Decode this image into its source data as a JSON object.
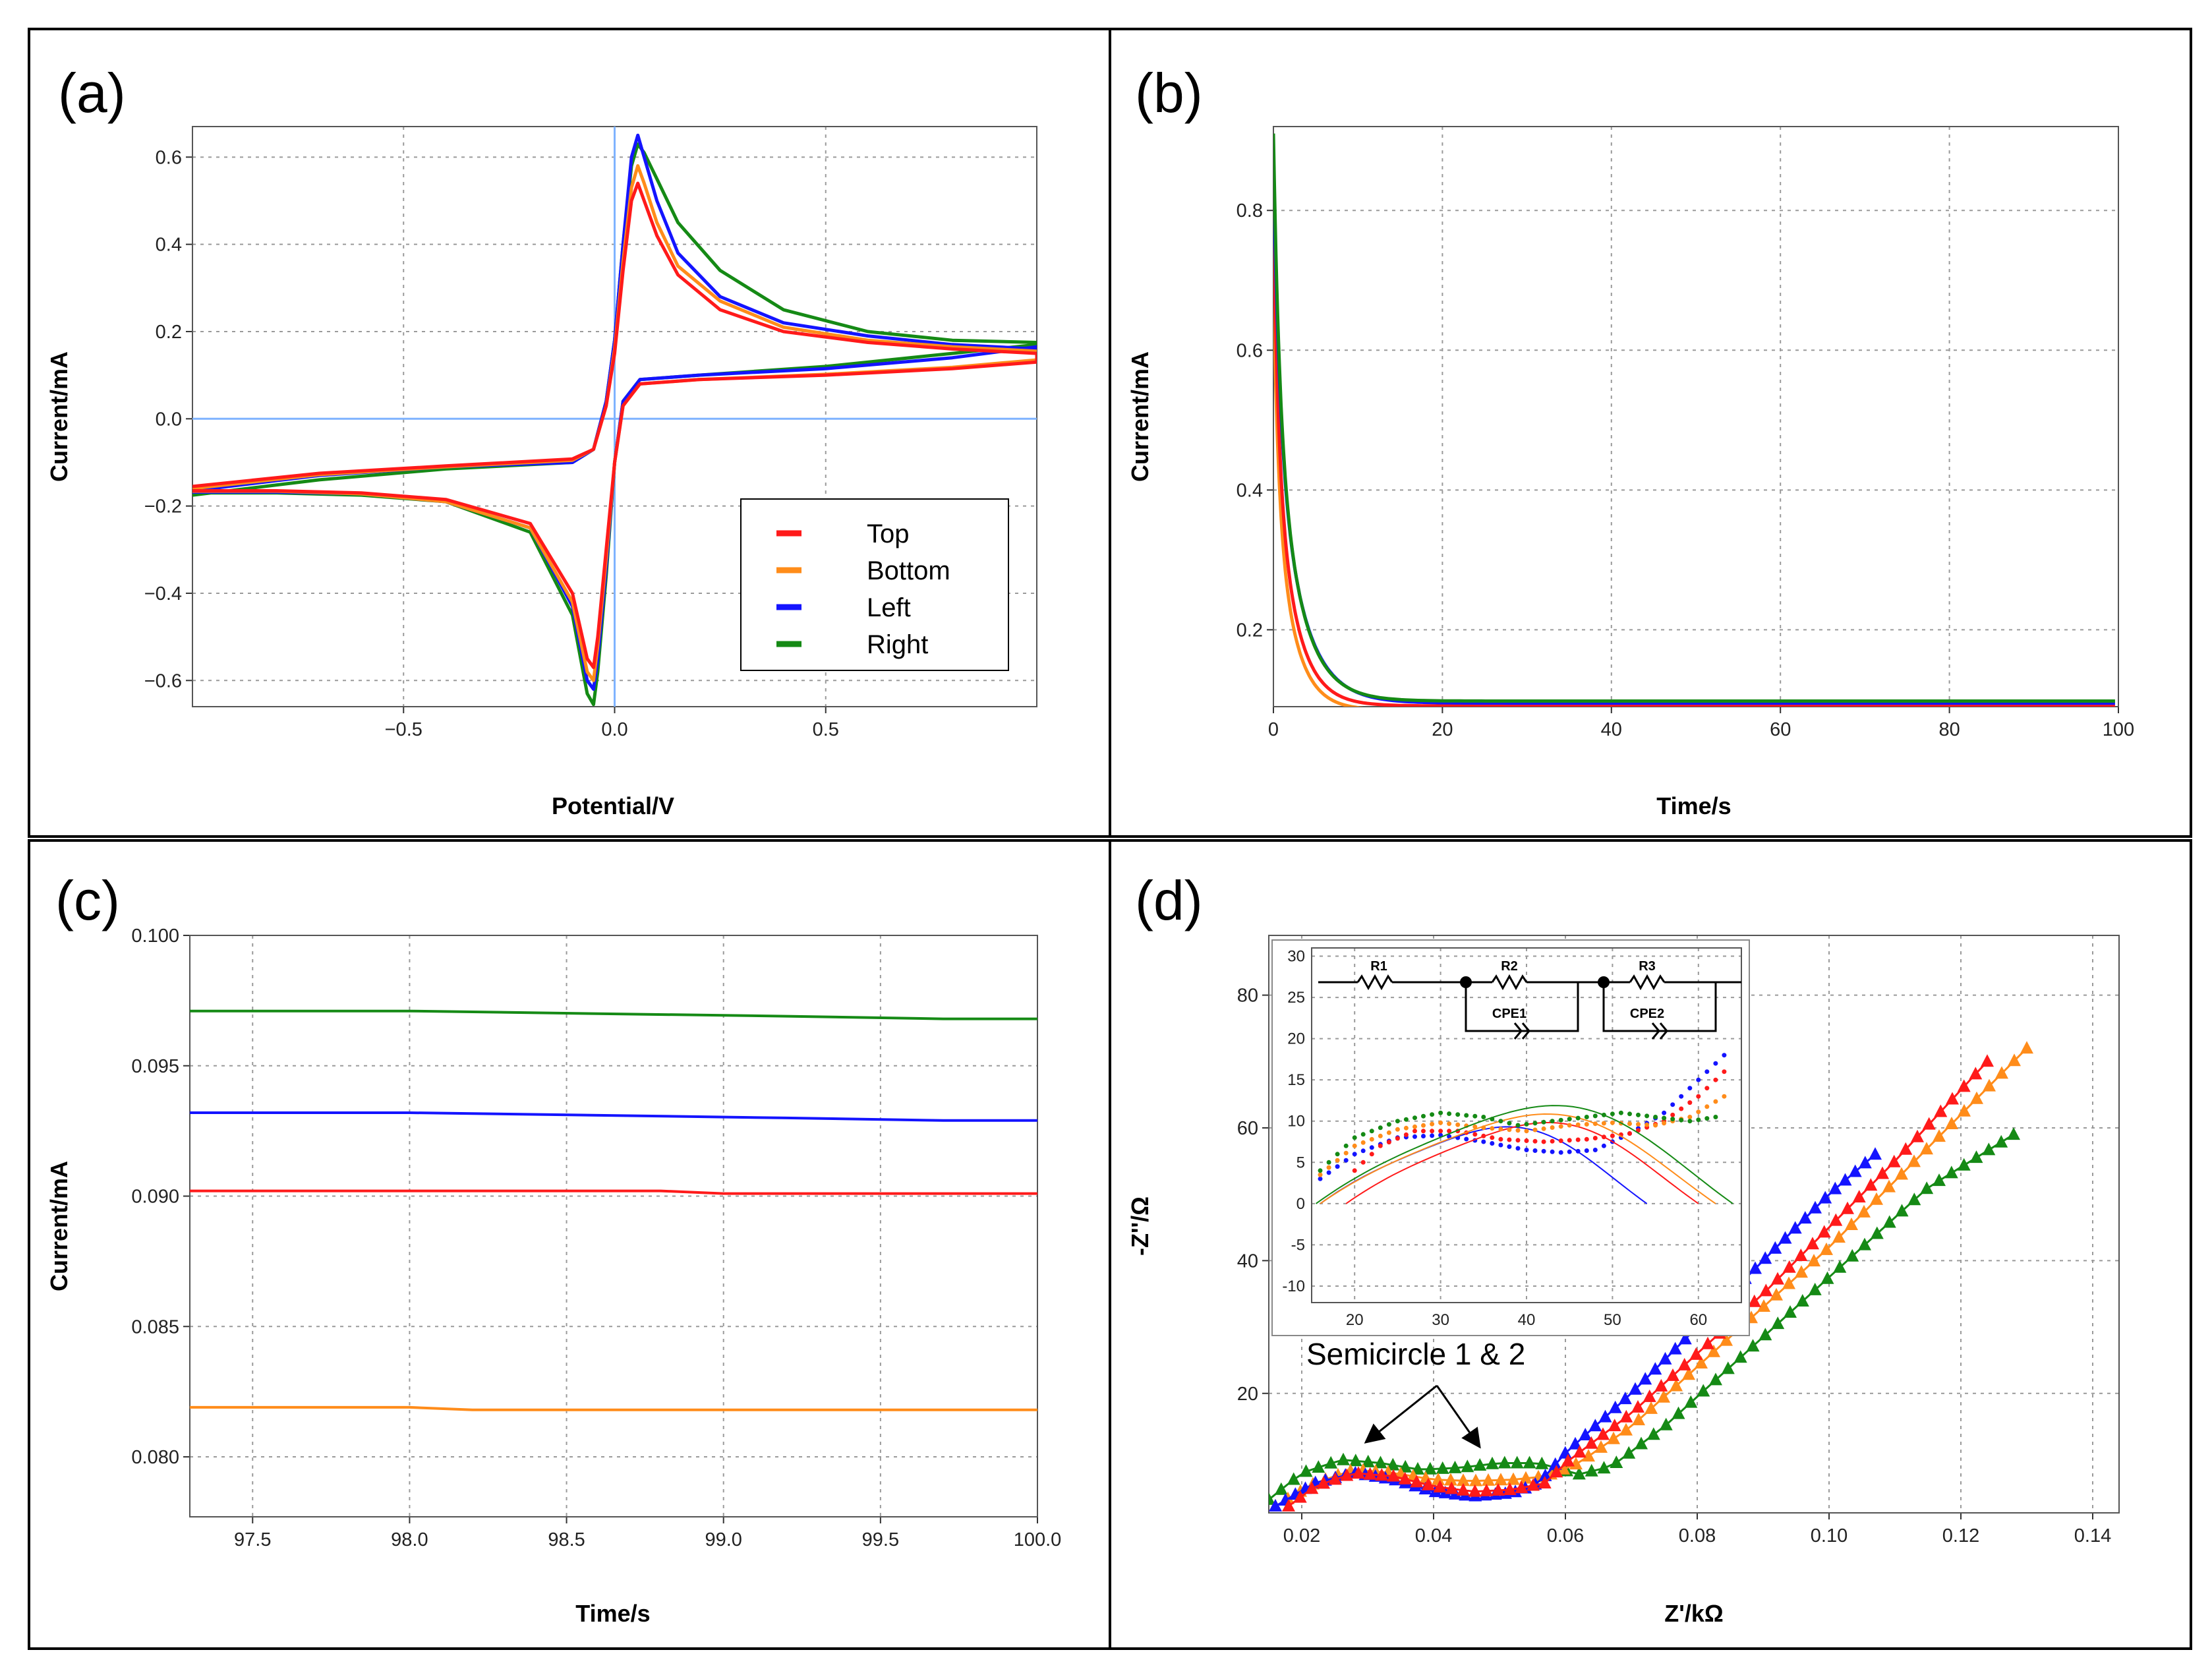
{
  "colors": {
    "Top": "#ff1a1a",
    "Bottom": "#ff8c1a",
    "Left": "#1414ff",
    "Right": "#158a15",
    "crosshair": "#7fb3ff"
  },
  "annotation": "Semicircle 1 & 2",
  "chart_data": [
    {
      "panel": "(a)",
      "type": "line",
      "title": "(a)",
      "xlabel": "Potential/V",
      "ylabel": "Current/mA",
      "xlim": [
        -1.0,
        1.0
      ],
      "ylim": [
        -0.66,
        0.67
      ],
      "xticks": [
        -0.5,
        0.0,
        0.5
      ],
      "xtick_labels": [
        "−0.5",
        "0.0",
        "0.5"
      ],
      "yticks": [
        -0.6,
        -0.4,
        -0.2,
        0.0,
        0.2,
        0.4,
        0.6
      ],
      "ytick_labels": [
        "−0.6",
        "−0.4",
        "−0.2",
        "0.0",
        "0.2",
        "0.4",
        "0.6"
      ],
      "legend": {
        "position": "lower-right",
        "entries": [
          "Top",
          "Bottom",
          "Left",
          "Right"
        ]
      },
      "series": [
        {
          "name": "Top",
          "color": "#ff1a1a",
          "upper": [
            [
              -1.0,
              -0.155
            ],
            [
              -0.7,
              -0.125
            ],
            [
              -0.4,
              -0.108
            ],
            [
              -0.1,
              -0.092
            ],
            [
              -0.05,
              -0.07
            ],
            [
              -0.02,
              0.03
            ],
            [
              0.0,
              0.15
            ],
            [
              0.02,
              0.34
            ],
            [
              0.04,
              0.5
            ],
            [
              0.055,
              0.54
            ],
            [
              0.07,
              0.5
            ],
            [
              0.1,
              0.42
            ],
            [
              0.15,
              0.33
            ],
            [
              0.25,
              0.25
            ],
            [
              0.4,
              0.2
            ],
            [
              0.6,
              0.175
            ],
            [
              0.8,
              0.16
            ],
            [
              1.0,
              0.15
            ]
          ],
          "lower": [
            [
              1.0,
              0.13
            ],
            [
              0.8,
              0.115
            ],
            [
              0.5,
              0.1
            ],
            [
              0.2,
              0.09
            ],
            [
              0.06,
              0.08
            ],
            [
              0.02,
              0.03
            ],
            [
              0.0,
              -0.1
            ],
            [
              -0.02,
              -0.3
            ],
            [
              -0.04,
              -0.5
            ],
            [
              -0.05,
              -0.57
            ],
            [
              -0.065,
              -0.55
            ],
            [
              -0.1,
              -0.4
            ],
            [
              -0.2,
              -0.24
            ],
            [
              -0.4,
              -0.185
            ],
            [
              -0.6,
              -0.17
            ],
            [
              -0.8,
              -0.165
            ],
            [
              -1.0,
              -0.165
            ]
          ]
        },
        {
          "name": "Bottom",
          "color": "#ff8c1a",
          "upper": [
            [
              -1.0,
              -0.16
            ],
            [
              -0.7,
              -0.128
            ],
            [
              -0.4,
              -0.11
            ],
            [
              -0.1,
              -0.095
            ],
            [
              -0.05,
              -0.07
            ],
            [
              -0.02,
              0.03
            ],
            [
              0.0,
              0.16
            ],
            [
              0.02,
              0.36
            ],
            [
              0.04,
              0.53
            ],
            [
              0.055,
              0.58
            ],
            [
              0.07,
              0.54
            ],
            [
              0.1,
              0.45
            ],
            [
              0.15,
              0.35
            ],
            [
              0.25,
              0.27
            ],
            [
              0.4,
              0.21
            ],
            [
              0.6,
              0.18
            ],
            [
              0.8,
              0.165
            ],
            [
              1.0,
              0.155
            ]
          ],
          "lower": [
            [
              1.0,
              0.135
            ],
            [
              0.8,
              0.118
            ],
            [
              0.5,
              0.102
            ],
            [
              0.2,
              0.09
            ],
            [
              0.06,
              0.08
            ],
            [
              0.02,
              0.03
            ],
            [
              0.0,
              -0.1
            ],
            [
              -0.02,
              -0.32
            ],
            [
              -0.04,
              -0.52
            ],
            [
              -0.05,
              -0.6
            ],
            [
              -0.065,
              -0.58
            ],
            [
              -0.1,
              -0.42
            ],
            [
              -0.2,
              -0.25
            ],
            [
              -0.4,
              -0.19
            ],
            [
              -0.6,
              -0.172
            ],
            [
              -0.8,
              -0.166
            ],
            [
              -1.0,
              -0.166
            ]
          ]
        },
        {
          "name": "Left",
          "color": "#1414ff",
          "upper": [
            [
              -1.0,
              -0.165
            ],
            [
              -0.7,
              -0.13
            ],
            [
              -0.4,
              -0.11
            ],
            [
              -0.1,
              -0.1
            ],
            [
              -0.05,
              -0.07
            ],
            [
              -0.02,
              0.04
            ],
            [
              0.0,
              0.18
            ],
            [
              0.02,
              0.4
            ],
            [
              0.04,
              0.6
            ],
            [
              0.055,
              0.65
            ],
            [
              0.07,
              0.6
            ],
            [
              0.1,
              0.5
            ],
            [
              0.15,
              0.38
            ],
            [
              0.25,
              0.28
            ],
            [
              0.4,
              0.22
            ],
            [
              0.6,
              0.19
            ],
            [
              0.8,
              0.17
            ],
            [
              1.0,
              0.16
            ]
          ],
          "lower": [
            [
              1.0,
              0.165
            ],
            [
              0.8,
              0.14
            ],
            [
              0.5,
              0.115
            ],
            [
              0.2,
              0.1
            ],
            [
              0.06,
              0.09
            ],
            [
              0.02,
              0.04
            ],
            [
              0.0,
              -0.1
            ],
            [
              -0.02,
              -0.34
            ],
            [
              -0.04,
              -0.55
            ],
            [
              -0.05,
              -0.62
            ],
            [
              -0.065,
              -0.6
            ],
            [
              -0.1,
              -0.43
            ],
            [
              -0.2,
              -0.25
            ],
            [
              -0.4,
              -0.19
            ],
            [
              -0.6,
              -0.172
            ],
            [
              -0.8,
              -0.168
            ],
            [
              -1.0,
              -0.168
            ]
          ]
        },
        {
          "name": "Right",
          "color": "#158a15",
          "upper": [
            [
              -1.0,
              -0.175
            ],
            [
              -0.7,
              -0.14
            ],
            [
              -0.4,
              -0.115
            ],
            [
              -0.1,
              -0.1
            ],
            [
              -0.05,
              -0.07
            ],
            [
              -0.02,
              0.04
            ],
            [
              0.0,
              0.18
            ],
            [
              0.02,
              0.4
            ],
            [
              0.04,
              0.58
            ],
            [
              0.055,
              0.63
            ],
            [
              0.07,
              0.61
            ],
            [
              0.1,
              0.55
            ],
            [
              0.15,
              0.45
            ],
            [
              0.25,
              0.34
            ],
            [
              0.4,
              0.25
            ],
            [
              0.6,
              0.2
            ],
            [
              0.8,
              0.18
            ],
            [
              1.0,
              0.175
            ]
          ],
          "lower": [
            [
              1.0,
              0.17
            ],
            [
              0.8,
              0.15
            ],
            [
              0.5,
              0.12
            ],
            [
              0.2,
              0.1
            ],
            [
              0.06,
              0.09
            ],
            [
              0.02,
              0.04
            ],
            [
              0.0,
              -0.1
            ],
            [
              -0.02,
              -0.36
            ],
            [
              -0.04,
              -0.58
            ],
            [
              -0.05,
              -0.655
            ],
            [
              -0.065,
              -0.63
            ],
            [
              -0.1,
              -0.45
            ],
            [
              -0.2,
              -0.26
            ],
            [
              -0.4,
              -0.19
            ],
            [
              -0.6,
              -0.175
            ],
            [
              -0.8,
              -0.17
            ],
            [
              -1.0,
              -0.17
            ]
          ]
        }
      ]
    },
    {
      "panel": "(b)",
      "type": "line",
      "title": "(b)",
      "xlabel": "Time/s",
      "ylabel": "Current/mA",
      "xlim": [
        0,
        100
      ],
      "ylim": [
        0.09,
        0.92
      ],
      "xticks": [
        0,
        20,
        40,
        60,
        80,
        100
      ],
      "xtick_labels": [
        "0",
        "20",
        "40",
        "60",
        "80",
        "100"
      ],
      "yticks": [
        0.2,
        0.4,
        0.6,
        0.8
      ],
      "ytick_labels": [
        "0.2",
        "0.4",
        "0.6",
        "0.8"
      ],
      "series": [
        {
          "name": "Top",
          "color": "#ff1a1a",
          "tau": 2.4,
          "i0": 0.78,
          "iinf": 0.091
        },
        {
          "name": "Bottom",
          "color": "#ff8c1a",
          "tau": 2.2,
          "i0": 0.7,
          "iinf": 0.085
        },
        {
          "name": "Left",
          "color": "#1414ff",
          "tau": 3.0,
          "i0": 0.86,
          "iinf": 0.095
        },
        {
          "name": "Right",
          "color": "#158a15",
          "tau": 2.8,
          "i0": 0.91,
          "iinf": 0.098
        }
      ]
    },
    {
      "panel": "(c)",
      "type": "line",
      "title": "(c)",
      "xlabel": "Time/s",
      "ylabel": "Current/mA",
      "xlim": [
        97.3,
        100.0
      ],
      "ylim": [
        0.0777,
        0.1
      ],
      "xticks": [
        97.5,
        98.0,
        98.5,
        99.0,
        99.5,
        100.0
      ],
      "xtick_labels": [
        "97.5",
        "98.0",
        "98.5",
        "99.0",
        "99.5",
        "100.0"
      ],
      "yticks": [
        0.08,
        0.085,
        0.09,
        0.095,
        0.1
      ],
      "ytick_labels": [
        "0.080",
        "0.085",
        "0.090",
        "0.095",
        "0.100"
      ],
      "series": [
        {
          "name": "Right",
          "color": "#158a15",
          "x": [
            97.3,
            98.0,
            98.6,
            99.2,
            99.7,
            100.0
          ],
          "y": [
            0.0971,
            0.0971,
            0.097,
            0.0969,
            0.0968,
            0.0968
          ]
        },
        {
          "name": "Left",
          "color": "#1414ff",
          "x": [
            97.3,
            98.0,
            98.6,
            99.2,
            99.7,
            100.0
          ],
          "y": [
            0.0932,
            0.0932,
            0.0931,
            0.093,
            0.0929,
            0.0929
          ]
        },
        {
          "name": "Top",
          "color": "#ff1a1a",
          "x": [
            97.3,
            98.0,
            98.8,
            99.0,
            100.0
          ],
          "y": [
            0.0902,
            0.0902,
            0.0902,
            0.0901,
            0.0901
          ]
        },
        {
          "name": "Bottom",
          "color": "#ff8c1a",
          "x": [
            97.3,
            98.0,
            98.2,
            99.0,
            99.2,
            100.0
          ],
          "y": [
            0.0819,
            0.0819,
            0.0818,
            0.0818,
            0.0818,
            0.0818
          ]
        }
      ]
    },
    {
      "panel": "(d)",
      "type": "scatter",
      "title": "(d)",
      "xlabel": "Z'/kΩ",
      "ylabel": "-Z''/Ω",
      "xlim": [
        0.015,
        0.144
      ],
      "ylim": [
        2,
        89
      ],
      "xticks": [
        0.02,
        0.04,
        0.06,
        0.08,
        0.1,
        0.12,
        0.14
      ],
      "xtick_labels": [
        "0.02",
        "0.04",
        "0.06",
        "0.08",
        "0.10",
        "0.12",
        "0.14"
      ],
      "yticks": [
        20,
        40,
        60,
        80
      ],
      "ytick_labels": [
        "20",
        "40",
        "60",
        "80"
      ],
      "series": [
        {
          "name": "Left",
          "color": "#1414ff",
          "xk": [
            0.016,
            0.022,
            0.028,
            0.034,
            0.04,
            0.046,
            0.052,
            0.056,
            0.06,
            0.07,
            0.08,
            0.09,
            0.1,
            0.107
          ],
          "yk": [
            3,
            6.5,
            8,
            7,
            5.2,
            4.5,
            5,
            6.5,
            11,
            20,
            30,
            40,
            50,
            56
          ]
        },
        {
          "name": "Top",
          "color": "#ff1a1a",
          "xk": [
            0.018,
            0.022,
            0.028,
            0.034,
            0.04,
            0.046,
            0.052,
            0.057,
            0.06,
            0.07,
            0.08,
            0.09,
            0.1,
            0.11,
            0.124
          ],
          "yk": [
            3,
            6,
            8,
            7.5,
            6,
            5.2,
            5.5,
            6.5,
            9.5,
            17,
            26,
            35,
            45,
            55,
            70
          ]
        },
        {
          "name": "Bottom",
          "color": "#ff8c1a",
          "xk": [
            0.016,
            0.022,
            0.028,
            0.034,
            0.04,
            0.046,
            0.052,
            0.057,
            0.062,
            0.07,
            0.08,
            0.09,
            0.1,
            0.11,
            0.12,
            0.13
          ],
          "yk": [
            3,
            6.5,
            8.5,
            8,
            7,
            6.8,
            7,
            7.5,
            9.5,
            15,
            24,
            33,
            42,
            52,
            62,
            72
          ]
        },
        {
          "name": "Right",
          "color": "#158a15",
          "xk": [
            0.015,
            0.02,
            0.026,
            0.032,
            0.038,
            0.044,
            0.05,
            0.056,
            0.062,
            0.067,
            0.075,
            0.085,
            0.095,
            0.105,
            0.115,
            0.128
          ],
          "yk": [
            4,
            8,
            10,
            9.5,
            8.5,
            8.8,
            9.5,
            9.5,
            7.8,
            9,
            15,
            24,
            33,
            42,
            51,
            59
          ]
        }
      ],
      "inset": {
        "xlim": [
          15,
          65
        ],
        "ylim": [
          -12,
          31
        ],
        "xticks": [
          20,
          30,
          40,
          50,
          60
        ],
        "xtick_labels": [
          "20",
          "30",
          "40",
          "50",
          "60"
        ],
        "yticks": [
          -10,
          -5,
          0,
          5,
          10,
          15,
          20,
          25,
          30
        ],
        "ytick_labels": [
          "-10",
          "-5",
          "0",
          "5",
          "10",
          "15",
          "20",
          "25",
          "30"
        ],
        "circuit_labels": [
          "R1",
          "R2",
          "CPE1",
          "R3",
          "CPE2"
        ]
      }
    }
  ]
}
